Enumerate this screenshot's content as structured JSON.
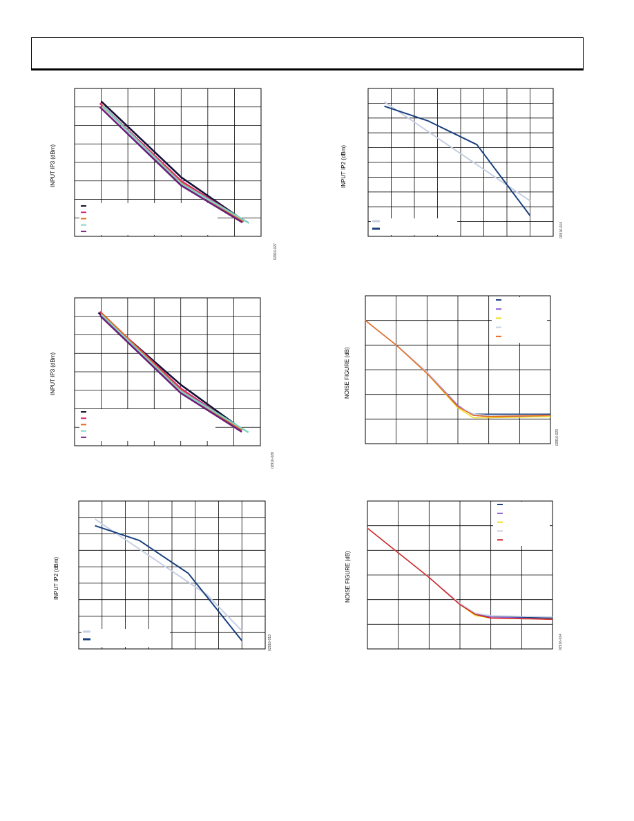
{
  "header": {},
  "chart_data": [
    {
      "id": "c1",
      "type": "line",
      "ylabel": "INPUT IP3 (dBm)",
      "figure_id": "02916-027",
      "grid": true,
      "xlim": [
        0,
        7
      ],
      "ylim": [
        0,
        8
      ],
      "legend": "bottom-left",
      "series": [
        {
          "color": "#111133",
          "points": [
            [
              1.0,
              7.3
            ],
            [
              4.0,
              3.2
            ],
            [
              6.3,
              0.9
            ]
          ]
        },
        {
          "color": "#d62a7a",
          "points": [
            [
              0.95,
              7.2
            ],
            [
              4.0,
              3.0
            ],
            [
              6.35,
              0.85
            ]
          ]
        },
        {
          "color": "#e8661d",
          "points": [
            [
              1.0,
              7.1
            ],
            [
              4.0,
              2.9
            ],
            [
              6.35,
              0.8
            ]
          ]
        },
        {
          "color": "#7fd3c5",
          "points": [
            [
              1.05,
              7.05
            ],
            [
              4.0,
              2.85
            ],
            [
              6.55,
              0.72
            ]
          ]
        },
        {
          "color": "#6b1e7a",
          "points": [
            [
              0.95,
              7.0
            ],
            [
              4.0,
              2.75
            ],
            [
              6.3,
              0.75
            ]
          ]
        }
      ]
    },
    {
      "id": "c2",
      "type": "line",
      "ylabel": "INPUT IP2 (dBm)",
      "figure_id": "02916-014",
      "grid": true,
      "xlim": [
        0,
        8
      ],
      "ylim": [
        0,
        10
      ],
      "legend": "bottom-left",
      "series": [
        {
          "color": "#c7cfe3",
          "points": [
            [
              0.7,
              9.1
            ],
            [
              7.0,
              2.4
            ]
          ]
        },
        {
          "color": "#173f7e",
          "points": [
            [
              0.7,
              8.8
            ],
            [
              2.6,
              7.8
            ],
            [
              4.7,
              6.2
            ],
            [
              7.0,
              1.4
            ]
          ]
        }
      ]
    },
    {
      "id": "c3",
      "type": "line",
      "ylabel": "INPUT IP3 (dBm)",
      "figure_id": "02916-028",
      "grid": true,
      "xlim": [
        0,
        7
      ],
      "ylim": [
        0,
        8
      ],
      "legend": "bottom-left",
      "series": [
        {
          "color": "#111133",
          "points": [
            [
              0.9,
              7.2
            ],
            [
              4.0,
              3.3
            ],
            [
              6.3,
              0.9
            ]
          ]
        },
        {
          "color": "#d62a7a",
          "points": [
            [
              0.95,
              7.25
            ],
            [
              4.0,
              3.1
            ],
            [
              6.3,
              0.85
            ]
          ]
        },
        {
          "color": "#e8661d",
          "points": [
            [
              1.0,
              7.2
            ],
            [
              4.0,
              3.0
            ],
            [
              6.3,
              0.82
            ]
          ]
        },
        {
          "color": "#7fd3c5",
          "points": [
            [
              1.0,
              7.1
            ],
            [
              4.0,
              2.95
            ],
            [
              6.55,
              0.72
            ]
          ]
        },
        {
          "color": "#6b1e7a",
          "points": [
            [
              0.95,
              7.05
            ],
            [
              4.0,
              2.85
            ],
            [
              6.3,
              0.75
            ]
          ]
        }
      ]
    },
    {
      "id": "c4",
      "type": "line",
      "ylabel": "NOISE FIGURE (dB)",
      "figure_id": "02916-023",
      "grid": true,
      "xlim": [
        0,
        6
      ],
      "ylim": [
        0,
        6
      ],
      "legend": "top-right",
      "series": [
        {
          "color": "#173f7e",
          "points": [
            [
              0,
              5.0
            ],
            [
              1,
              4.0
            ],
            [
              2,
              2.9
            ],
            [
              3,
              1.5
            ],
            [
              3.5,
              1.2
            ],
            [
              4,
              1.2
            ],
            [
              6,
              1.2
            ]
          ]
        },
        {
          "color": "#8a5ccf",
          "points": [
            [
              0,
              5.0
            ],
            [
              1,
              4.0
            ],
            [
              2,
              2.9
            ],
            [
              3,
              1.55
            ],
            [
              3.5,
              1.15
            ],
            [
              4,
              1.1
            ],
            [
              6,
              1.1
            ]
          ]
        },
        {
          "color": "#f2dc1a",
          "points": [
            [
              0,
              5.0
            ],
            [
              1,
              4.0
            ],
            [
              2,
              2.85
            ],
            [
              3,
              1.45
            ],
            [
              3.5,
              1.05
            ],
            [
              4,
              1.05
            ],
            [
              6,
              1.1
            ]
          ]
        },
        {
          "color": "#c7cfe3",
          "points": [
            [
              0,
              5.0
            ],
            [
              1,
              4.0
            ],
            [
              2,
              2.9
            ],
            [
              3,
              1.5
            ],
            [
              3.5,
              1.2
            ],
            [
              4,
              1.15
            ],
            [
              6,
              1.15
            ]
          ]
        },
        {
          "color": "#e8661d",
          "points": [
            [
              0,
              5.0
            ],
            [
              1,
              4.0
            ],
            [
              2,
              2.85
            ],
            [
              3,
              1.5
            ],
            [
              3.5,
              1.15
            ],
            [
              4,
              1.1
            ],
            [
              6,
              1.15
            ]
          ]
        }
      ]
    },
    {
      "id": "c5",
      "type": "line",
      "ylabel": "INPUT IP2 (dBm)",
      "figure_id": "02916-013",
      "grid": true,
      "xlim": [
        0,
        8
      ],
      "ylim": [
        0,
        9
      ],
      "legend": "bottom-left",
      "series": [
        {
          "color": "#c7cfe3",
          "points": [
            [
              0.7,
              7.9
            ],
            [
              5.5,
              3.3
            ],
            [
              7.0,
              1.1
            ]
          ]
        },
        {
          "color": "#173f7e",
          "points": [
            [
              0.7,
              7.5
            ],
            [
              2.6,
              6.6
            ],
            [
              4.7,
              4.6
            ],
            [
              7.0,
              0.5
            ]
          ]
        }
      ]
    },
    {
      "id": "c6",
      "type": "line",
      "ylabel": "NOISE FIGURE (dB)",
      "figure_id": "02916-024",
      "grid": true,
      "xlim": [
        0,
        6
      ],
      "ylim": [
        0,
        6
      ],
      "legend": "top-right",
      "series": [
        {
          "color": "#173f7e",
          "points": [
            [
              0,
              4.9
            ],
            [
              1,
              3.9
            ],
            [
              2,
              2.9
            ],
            [
              3,
              1.8
            ],
            [
              3.5,
              1.4
            ],
            [
              4,
              1.3
            ],
            [
              6,
              1.25
            ]
          ]
        },
        {
          "color": "#8a5ccf",
          "points": [
            [
              0,
              4.9
            ],
            [
              1,
              3.9
            ],
            [
              2,
              2.9
            ],
            [
              3,
              1.8
            ],
            [
              3.5,
              1.4
            ],
            [
              4,
              1.3
            ],
            [
              6,
              1.2
            ]
          ]
        },
        {
          "color": "#f2dc1a",
          "points": [
            [
              0,
              4.9
            ],
            [
              1,
              3.9
            ],
            [
              2,
              2.9
            ],
            [
              3,
              1.8
            ],
            [
              3.5,
              1.35
            ],
            [
              4,
              1.25
            ],
            [
              6,
              1.2
            ]
          ]
        },
        {
          "color": "#c7cfe3",
          "points": [
            [
              0,
              4.9
            ],
            [
              1,
              3.9
            ],
            [
              2,
              2.9
            ],
            [
              3,
              1.85
            ],
            [
              3.5,
              1.45
            ],
            [
              4,
              1.35
            ],
            [
              6,
              1.3
            ]
          ]
        },
        {
          "color": "#d7222a",
          "points": [
            [
              0,
              4.9
            ],
            [
              1,
              3.9
            ],
            [
              2,
              2.9
            ],
            [
              3,
              1.8
            ],
            [
              3.5,
              1.4
            ],
            [
              4,
              1.25
            ],
            [
              6,
              1.2
            ]
          ]
        }
      ]
    }
  ]
}
